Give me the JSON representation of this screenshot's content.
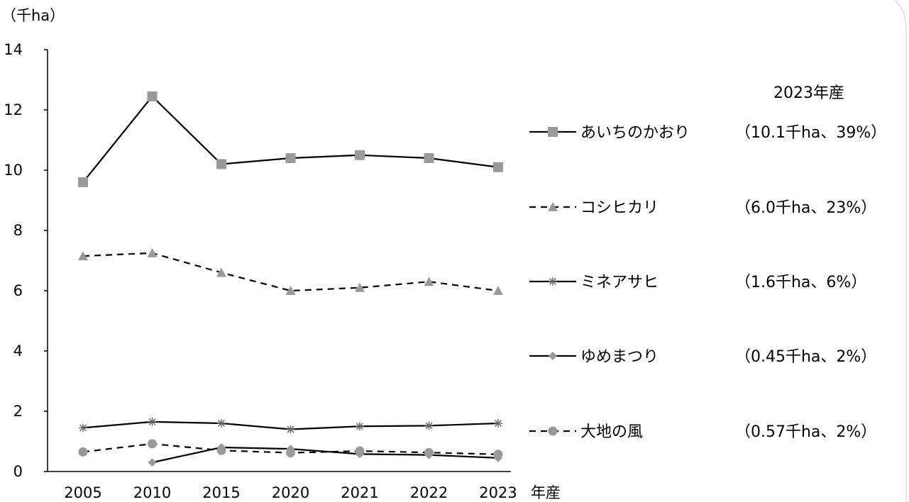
{
  "chart_data": {
    "type": "line",
    "y_unit_label": "（千ha）",
    "x_unit_label": "年産",
    "categories": [
      "2005",
      "2010",
      "2015",
      "2020",
      "2021",
      "2022",
      "2023"
    ],
    "ylim": [
      0,
      14
    ],
    "y_ticks": [
      "0",
      "2",
      "4",
      "6",
      "8",
      "10",
      "12",
      "14"
    ],
    "grid": false,
    "legend_header": "2023年産",
    "series": [
      {
        "name": "あいちのかおり",
        "values": [
          9.6,
          12.45,
          10.2,
          10.4,
          10.5,
          10.4,
          10.1
        ],
        "marker": "square",
        "dash": "solid",
        "color": "#000000",
        "marker_color": "#999999",
        "note": "（10.1千ha、39%）"
      },
      {
        "name": "コシヒカリ",
        "values": [
          7.15,
          7.25,
          6.6,
          6.0,
          6.1,
          6.3,
          6.0
        ],
        "marker": "triangle",
        "dash": "dashed",
        "color": "#000000",
        "marker_color": "#999999",
        "note": "（6.0千ha、23%）"
      },
      {
        "name": "ミネアサヒ",
        "values": [
          1.45,
          1.65,
          1.6,
          1.4,
          1.5,
          1.52,
          1.6
        ],
        "marker": "asterisk",
        "dash": "solid",
        "color": "#000000",
        "marker_color": "#666666",
        "note": "（1.6千ha、6%）"
      },
      {
        "name": "ゆめまつり",
        "values": [
          null,
          0.3,
          0.8,
          0.75,
          0.58,
          0.55,
          0.45
        ],
        "marker": "diamond",
        "dash": "solid",
        "color": "#000000",
        "marker_color": "#999999",
        "note": "（0.45千ha、2%）"
      },
      {
        "name": "大地の風",
        "values": [
          0.65,
          0.92,
          0.7,
          0.62,
          0.68,
          0.63,
          0.57
        ],
        "marker": "circle",
        "dash": "dashed",
        "color": "#000000",
        "marker_color": "#999999",
        "note": "（0.57千ha、2%）"
      }
    ]
  }
}
